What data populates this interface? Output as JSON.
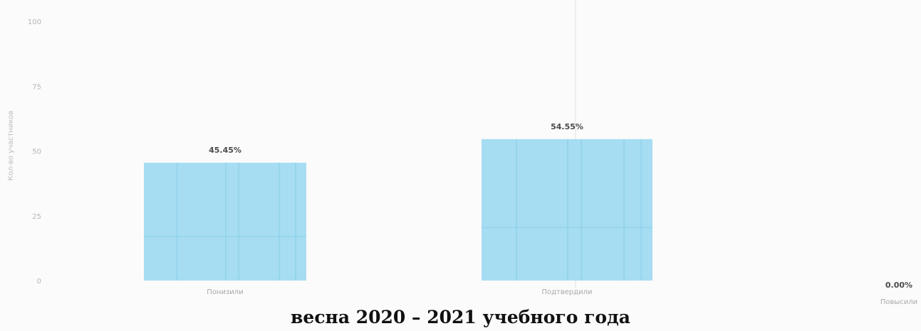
{
  "chart_data": {
    "type": "bar",
    "categories": [
      "Понизили",
      "Подтвердили",
      "Повысили"
    ],
    "values": [
      45.45,
      54.55,
      0.0
    ],
    "data_labels": [
      "45.45%",
      "54.55%",
      "0.00%"
    ],
    "ylabel": "Кол-во участников",
    "yticks": [
      "0",
      "25",
      "50",
      "75",
      "100"
    ],
    "ylim": [
      0,
      100
    ],
    "grid": false,
    "colors": {
      "bar": "#a6ddf2",
      "bar_stripe": "#8ccfe9"
    }
  },
  "caption": "весна 2020 – 2021 учебного года"
}
